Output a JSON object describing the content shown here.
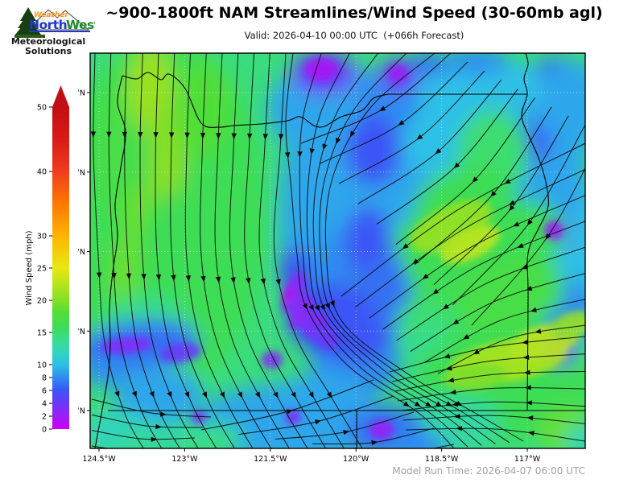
{
  "header": {
    "title": "~900-1800ft NAM Streamlines/Wind Speed (30-60mb agl)",
    "subtitle": "Valid: 2026-04-10 00:00 UTC  (+066h Forecast)"
  },
  "logo": {
    "brand_top": "Weather",
    "brand_north": "North",
    "brand_west": "West",
    "tagline_line1": "Meteorological",
    "tagline_line2": "Solutions",
    "colors": {
      "brand_top": "#f7941d",
      "north": "#2438c8",
      "west": "#1d8a28",
      "tree": "#173f12"
    }
  },
  "footer": {
    "model_run": "Model Run Time: 2026-04-07 06:00 UTC",
    "color": "#a2a2a2"
  },
  "colorbar": {
    "label": "Wind Speed (mph)",
    "units": "mph",
    "min": 0,
    "max": 50,
    "ticks": [
      0,
      2,
      4,
      6,
      8,
      10,
      15,
      20,
      25,
      30,
      40,
      50
    ],
    "stops": [
      [
        0,
        "#cf00f2"
      ],
      [
        2,
        "#9b1ef6"
      ],
      [
        4,
        "#6b38f8"
      ],
      [
        6,
        "#3a55f6"
      ],
      [
        8,
        "#2f8cf0"
      ],
      [
        10,
        "#2ec0e6"
      ],
      [
        12,
        "#33d4bc"
      ],
      [
        14,
        "#39dc8a"
      ],
      [
        16,
        "#3edd55"
      ],
      [
        18,
        "#50de38"
      ],
      [
        20,
        "#85df25"
      ],
      [
        25,
        "#e6e913"
      ],
      [
        30,
        "#ffb400"
      ],
      [
        35,
        "#ff7800"
      ],
      [
        40,
        "#ef3d1e"
      ],
      [
        45,
        "#d91a17"
      ],
      [
        50,
        "#c20f13"
      ]
    ]
  },
  "map": {
    "lat_tick_labels": [
      "46°N",
      "45°N",
      "44°N",
      "43°N",
      "42°N"
    ],
    "lat_values": [
      46,
      45,
      44,
      43,
      42
    ],
    "lon_tick_labels": [
      "124.5°W",
      "123°W",
      "121.5°W",
      "120°W",
      "118.5°W",
      "117°W"
    ],
    "lon_values": [
      124.5,
      123,
      121.5,
      120,
      118.5,
      117
    ]
  },
  "chart_data": {
    "type": "heatmap",
    "title": "~900-1800ft NAM Streamlines/Wind Speed (30-60mb agl)",
    "valid_time": "2026-04-10 00:00 UTC",
    "forecast_hour": "+066h",
    "model_run_time": "2026-04-07 06:00 UTC",
    "region": "Oregon / Pacific Northwest",
    "lon_range_deg_west": [
      124.65,
      116.0
    ],
    "lat_range_deg_north": [
      41.55,
      46.5
    ],
    "colorbar_label": "Wind Speed (mph)",
    "colorbar_ticks": [
      0,
      2,
      4,
      6,
      8,
      10,
      15,
      20,
      25,
      30,
      40,
      50
    ],
    "wind_speed_range_shown_mph": [
      0,
      30
    ],
    "notes": "Streamline vectors over wind-speed fill; calm purple pockets along a convergence line through central Oregon, green 15-20 mph west side, yellow 20-25 mph bands NW corner and SE interior, cyan 8-12 mph east side"
  }
}
